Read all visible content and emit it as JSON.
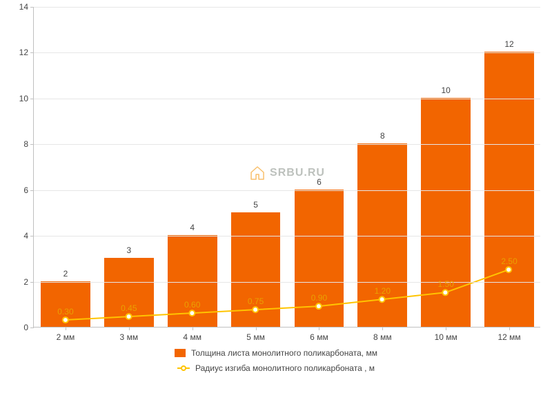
{
  "chart": {
    "type": "bar+line",
    "background_color": "#ffffff",
    "grid_color": "#e6e6e6",
    "axis_color": "#c0c0c0",
    "tick_font_size": 12,
    "tick_color": "#444444",
    "y": {
      "min": 0,
      "max": 14,
      "step": 2,
      "ticks": [
        0,
        2,
        4,
        6,
        8,
        10,
        12,
        14
      ]
    },
    "x_labels": [
      "2 мм",
      "3 мм",
      "4 мм",
      "5 мм",
      "6 мм",
      "8 мм",
      "10 мм",
      "12 мм"
    ],
    "bars": {
      "values": [
        2,
        3,
        4,
        5,
        6,
        8,
        10,
        12
      ],
      "labels": [
        "2",
        "3",
        "4",
        "5",
        "6",
        "8",
        "10",
        "12"
      ],
      "color": "#f26500",
      "width_ratio": 0.78,
      "label_color": "#444444",
      "label_fontsize": 12
    },
    "line": {
      "values": [
        0.3,
        0.45,
        0.6,
        0.75,
        0.9,
        1.2,
        1.5,
        2.5
      ],
      "labels": [
        "0.30",
        "0.45",
        "0.60",
        "0.75",
        "0.90",
        "1.20",
        "1.50",
        "2.50"
      ],
      "stroke": "#ffc400",
      "stroke_width": 2,
      "marker_fill": "#ffffff",
      "marker_stroke": "#ffc400",
      "marker_radius": 4,
      "label_color": "#e9a100",
      "label_fontsize": 12
    },
    "legend": {
      "series1": "Толщина листа монолитного поликарбоната, мм",
      "series2": "Радиус изгиба монолитного поликарбоната , м"
    },
    "watermark": {
      "text": "SRBU.RU",
      "icon_color": "#f59e1e",
      "text_color": "#9aa19a"
    }
  }
}
